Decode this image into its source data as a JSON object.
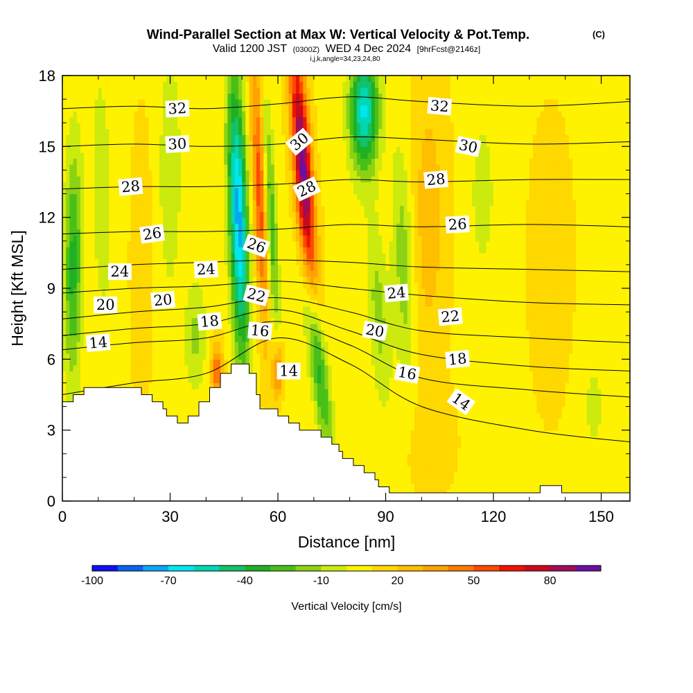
{
  "header": {
    "title_main": "Wind-Parallel Section at Max W: Vertical Velocity & Pot.Temp.",
    "title_mark": "(C)",
    "valid_prefix": "Valid 1200 JST",
    "valid_utc": "(0300Z)",
    "valid_date": "WED 4 Dec 2024",
    "forecast_info": "[9hrFcst@2146z]",
    "grid_info": "i,j,k,angle=34,23,24,80"
  },
  "chart_data": {
    "type": "heatmap",
    "xlabel": "Distance [nm]",
    "ylabel": "Height [Kft MSL]",
    "xlim": [
      0,
      158
    ],
    "ylim": [
      0,
      18
    ],
    "x_ticks": [
      0,
      30,
      60,
      90,
      120,
      150
    ],
    "y_ticks": [
      0,
      3,
      6,
      9,
      12,
      15,
      18
    ],
    "colorbar": {
      "label": "Vertical Velocity [cm/s]",
      "min": -100,
      "max": 100,
      "step": 10,
      "tick_values": [
        -100,
        -70,
        -40,
        -10,
        20,
        50,
        80
      ],
      "tick_labels": [
        "-100",
        "-70",
        "-40",
        "-10",
        "20",
        "50",
        "80"
      ],
      "colors": [
        "#1010f0",
        "#0a62f2",
        "#0aa6f6",
        "#00e6f0",
        "#00d8b4",
        "#12c26a",
        "#20b024",
        "#48c018",
        "#8cd212",
        "#ccea0e",
        "#fff200",
        "#ffd800",
        "#ffbe00",
        "#ffa200",
        "#ff7a00",
        "#ff4a00",
        "#f01400",
        "#c80a1e",
        "#9e0c5a",
        "#6e0ea0"
      ]
    },
    "terrain_kft": [
      {
        "x": 0,
        "y": 4.2
      },
      {
        "x": 3,
        "y": 4.2
      },
      {
        "x": 3,
        "y": 4.5
      },
      {
        "x": 6,
        "y": 4.5
      },
      {
        "x": 6,
        "y": 4.8
      },
      {
        "x": 22,
        "y": 4.8
      },
      {
        "x": 22,
        "y": 4.5
      },
      {
        "x": 25,
        "y": 4.5
      },
      {
        "x": 25,
        "y": 4.2
      },
      {
        "x": 28,
        "y": 4.2
      },
      {
        "x": 28,
        "y": 3.9
      },
      {
        "x": 29,
        "y": 3.9
      },
      {
        "x": 29,
        "y": 3.6
      },
      {
        "x": 32,
        "y": 3.6
      },
      {
        "x": 32,
        "y": 3.3
      },
      {
        "x": 35,
        "y": 3.3
      },
      {
        "x": 35,
        "y": 3.6
      },
      {
        "x": 38,
        "y": 3.6
      },
      {
        "x": 38,
        "y": 4.2
      },
      {
        "x": 41,
        "y": 4.2
      },
      {
        "x": 41,
        "y": 4.8
      },
      {
        "x": 44,
        "y": 4.8
      },
      {
        "x": 44,
        "y": 5.4
      },
      {
        "x": 47,
        "y": 5.4
      },
      {
        "x": 47,
        "y": 5.8
      },
      {
        "x": 52,
        "y": 5.8
      },
      {
        "x": 52,
        "y": 5.4
      },
      {
        "x": 54,
        "y": 5.4
      },
      {
        "x": 54,
        "y": 4.5
      },
      {
        "x": 55,
        "y": 4.5
      },
      {
        "x": 55,
        "y": 3.9
      },
      {
        "x": 60,
        "y": 3.9
      },
      {
        "x": 60,
        "y": 3.6
      },
      {
        "x": 63,
        "y": 3.6
      },
      {
        "x": 63,
        "y": 3.3
      },
      {
        "x": 66,
        "y": 3.3
      },
      {
        "x": 66,
        "y": 3.0
      },
      {
        "x": 72,
        "y": 3.0
      },
      {
        "x": 72,
        "y": 2.7
      },
      {
        "x": 75,
        "y": 2.7
      },
      {
        "x": 75,
        "y": 2.4
      },
      {
        "x": 77,
        "y": 2.4
      },
      {
        "x": 77,
        "y": 2.1
      },
      {
        "x": 78,
        "y": 2.1
      },
      {
        "x": 78,
        "y": 1.8
      },
      {
        "x": 81,
        "y": 1.8
      },
      {
        "x": 81,
        "y": 1.5
      },
      {
        "x": 84,
        "y": 1.5
      },
      {
        "x": 84,
        "y": 1.2
      },
      {
        "x": 87,
        "y": 1.2
      },
      {
        "x": 87,
        "y": 0.9
      },
      {
        "x": 88,
        "y": 0.9
      },
      {
        "x": 88,
        "y": 0.6
      },
      {
        "x": 91,
        "y": 0.6
      },
      {
        "x": 91,
        "y": 0.35
      },
      {
        "x": 133,
        "y": 0.35
      },
      {
        "x": 133,
        "y": 0.65
      },
      {
        "x": 139,
        "y": 0.65
      },
      {
        "x": 139,
        "y": 0.35
      },
      {
        "x": 158,
        "y": 0.35
      }
    ],
    "w_field": {
      "background": 8,
      "features": [
        {
          "xc": 3,
          "zc": 10,
          "sx": 2.5,
          "sz": 5,
          "amp": -42,
          "tilt": 0.05
        },
        {
          "xc": 11,
          "zc": 13,
          "sx": 2.5,
          "sz": 5,
          "amp": -18,
          "tilt": -0.1
        },
        {
          "xc": 22,
          "zc": 10,
          "sx": 3,
          "sz": 6,
          "amp": 8,
          "tilt": 0
        },
        {
          "xc": 30,
          "zc": 14,
          "sx": 3,
          "sz": 5,
          "amp": -18,
          "tilt": 0
        },
        {
          "xc": 37,
          "zc": 7,
          "sx": 3,
          "sz": 2.5,
          "amp": -20,
          "tilt": 0
        },
        {
          "xc": 43,
          "zc": 5.5,
          "sx": 1.6,
          "sz": 1.2,
          "amp": 40,
          "tilt": 0
        },
        {
          "xc": 49,
          "zc": 12,
          "sx": 2.6,
          "sz": 6,
          "amp": -82,
          "tilt": -0.2
        },
        {
          "xc": 55,
          "zc": 13,
          "sx": 2,
          "sz": 6,
          "amp": 48,
          "tilt": -0.25
        },
        {
          "xc": 58,
          "zc": 12,
          "sx": 1.6,
          "sz": 5,
          "amp": -40,
          "tilt": -0.3
        },
        {
          "xc": 67,
          "zc": 14,
          "sx": 2.5,
          "sz": 5.5,
          "amp": 88,
          "tilt": -0.45
        },
        {
          "xc": 71,
          "zc": 6,
          "sx": 2.5,
          "sz": 4,
          "amp": -48,
          "tilt": -0.8
        },
        {
          "xc": 60,
          "zc": 5.5,
          "sx": 1.5,
          "sz": 1.2,
          "amp": 40,
          "tilt": 0
        },
        {
          "xc": 84,
          "zc": 16.5,
          "sx": 4,
          "sz": 2.5,
          "amp": -70,
          "tilt": 0
        },
        {
          "xc": 88,
          "zc": 8,
          "sx": 3,
          "sz": 4,
          "amp": -22,
          "tilt": -0.4
        },
        {
          "xc": 95,
          "zc": 10,
          "sx": 3,
          "sz": 5,
          "amp": -25,
          "tilt": -0.2
        },
        {
          "xc": 102,
          "zc": 12,
          "sx": 5,
          "sz": 6,
          "amp": 18,
          "tilt": 0
        },
        {
          "xc": 117,
          "zc": 13,
          "sx": 4,
          "sz": 4,
          "amp": -12,
          "tilt": 0
        },
        {
          "xc": 136,
          "zc": 10,
          "sx": 6,
          "sz": 6,
          "amp": 8,
          "tilt": 0
        },
        {
          "xc": 148,
          "zc": 4,
          "sx": 4,
          "sz": 3,
          "amp": -10,
          "tilt": 0
        },
        {
          "xc": 102,
          "zc": 2.5,
          "sx": 8,
          "sz": 2.5,
          "amp": 6,
          "tilt": 0
        }
      ]
    },
    "theta_contours": [
      {
        "y": [
          4.5,
          5.0,
          5.4,
          6.9,
          5.8,
          4.0,
          3.0,
          2.5
        ]
      },
      {
        "y": [
          6.4,
          6.7,
          6.9,
          7.6,
          6.6,
          5.2,
          4.7,
          4.4
        ]
      },
      {
        "y": [
          7.0,
          7.3,
          7.5,
          8.1,
          7.2,
          6.2,
          5.7,
          5.5
        ]
      },
      {
        "y": [
          7.7,
          8.0,
          8.2,
          8.6,
          8.0,
          7.2,
          6.9,
          6.7
        ]
      },
      {
        "y": [
          8.8,
          9.0,
          9.1,
          9.3,
          9.0,
          8.7,
          8.4,
          8.3
        ]
      },
      {
        "y": [
          9.8,
          10.0,
          10.1,
          10.2,
          10.1,
          9.9,
          9.8,
          9.7
        ]
      },
      {
        "y": [
          11.3,
          11.4,
          11.4,
          11.5,
          11.7,
          11.6,
          11.7,
          11.6
        ]
      },
      {
        "y": [
          13.2,
          13.3,
          13.3,
          13.4,
          13.6,
          13.5,
          13.6,
          13.6
        ]
      },
      {
        "y": [
          15.0,
          15.1,
          15.0,
          15.1,
          15.4,
          15.3,
          15.1,
          15.2
        ]
      },
      {
        "y": [
          16.6,
          16.7,
          16.6,
          16.8,
          17.1,
          16.9,
          16.7,
          16.9
        ]
      }
    ],
    "theta_contour_x": [
      0,
      20,
      40,
      60,
      80,
      100,
      130,
      158
    ],
    "contour_labels": [
      {
        "text": "32",
        "x": 32,
        "y": 16.6,
        "rot": -3
      },
      {
        "text": "30",
        "x": 32,
        "y": 15.1,
        "rot": -3
      },
      {
        "text": "28",
        "x": 19,
        "y": 13.3,
        "rot": -5
      },
      {
        "text": "26",
        "x": 25,
        "y": 11.3,
        "rot": -8
      },
      {
        "text": "24",
        "x": 16,
        "y": 9.7,
        "rot": 0
      },
      {
        "text": "24",
        "x": 40,
        "y": 9.8,
        "rot": -3
      },
      {
        "text": "20",
        "x": 12,
        "y": 8.3,
        "rot": 0
      },
      {
        "text": "20",
        "x": 28,
        "y": 8.5,
        "rot": -5
      },
      {
        "text": "18",
        "x": 41,
        "y": 7.6,
        "rot": -5
      },
      {
        "text": "14",
        "x": 10,
        "y": 6.7,
        "rot": -5
      },
      {
        "text": "30",
        "x": 66,
        "y": 15.2,
        "rot": -40
      },
      {
        "text": "28",
        "x": 68,
        "y": 13.2,
        "rot": -25
      },
      {
        "text": "26",
        "x": 54,
        "y": 10.8,
        "rot": 20
      },
      {
        "text": "22",
        "x": 54,
        "y": 8.7,
        "rot": 15
      },
      {
        "text": "16",
        "x": 55,
        "y": 7.2,
        "rot": 5
      },
      {
        "text": "14",
        "x": 63,
        "y": 5.5,
        "rot": 0
      },
      {
        "text": "32",
        "x": 105,
        "y": 16.7,
        "rot": 5
      },
      {
        "text": "30",
        "x": 113,
        "y": 15.0,
        "rot": 12
      },
      {
        "text": "28",
        "x": 104,
        "y": 13.6,
        "rot": -5
      },
      {
        "text": "26",
        "x": 110,
        "y": 11.7,
        "rot": -3
      },
      {
        "text": "24",
        "x": 93,
        "y": 8.8,
        "rot": -5
      },
      {
        "text": "22",
        "x": 108,
        "y": 7.8,
        "rot": -5
      },
      {
        "text": "20",
        "x": 87,
        "y": 7.2,
        "rot": 10
      },
      {
        "text": "18",
        "x": 110,
        "y": 6.0,
        "rot": -5
      },
      {
        "text": "16",
        "x": 96,
        "y": 5.4,
        "rot": 10
      },
      {
        "text": "14",
        "x": 111,
        "y": 4.2,
        "rot": 35
      }
    ]
  }
}
